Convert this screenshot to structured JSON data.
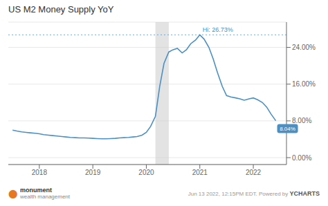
{
  "chart_data": {
    "type": "line",
    "title": "US M2 Money Supply YoY",
    "color": "#4a90c4",
    "x": [
      2017.5,
      2017.58,
      2017.67,
      2017.75,
      2017.83,
      2017.92,
      2018.0,
      2018.08,
      2018.17,
      2018.25,
      2018.33,
      2018.42,
      2018.5,
      2018.58,
      2018.67,
      2018.75,
      2018.83,
      2018.92,
      2019.0,
      2019.08,
      2019.17,
      2019.25,
      2019.33,
      2019.42,
      2019.5,
      2019.58,
      2019.67,
      2019.75,
      2019.83,
      2019.92,
      2020.0,
      2020.08,
      2020.17,
      2020.25,
      2020.33,
      2020.42,
      2020.5,
      2020.58,
      2020.67,
      2020.75,
      2020.83,
      2020.92,
      2021.0,
      2021.08,
      2021.17,
      2021.25,
      2021.33,
      2021.42,
      2021.5,
      2021.58,
      2021.67,
      2021.75,
      2021.83,
      2021.92,
      2022.0,
      2022.08,
      2022.17,
      2022.25,
      2022.33,
      2022.42
    ],
    "values": [
      6.0,
      5.8,
      5.6,
      5.5,
      5.4,
      5.3,
      5.2,
      5.0,
      4.9,
      4.8,
      4.7,
      4.6,
      4.5,
      4.4,
      4.35,
      4.3,
      4.3,
      4.25,
      4.2,
      4.15,
      4.1,
      4.1,
      4.15,
      4.2,
      4.3,
      4.35,
      4.4,
      4.5,
      4.6,
      4.9,
      5.5,
      6.8,
      9.0,
      15.5,
      20.5,
      23.0,
      23.5,
      23.8,
      22.8,
      23.5,
      24.8,
      25.6,
      26.73,
      25.8,
      24.0,
      21.5,
      18.5,
      15.5,
      13.5,
      13.2,
      13.0,
      12.8,
      12.5,
      12.8,
      13.0,
      12.6,
      12.0,
      11.0,
      9.5,
      8.04
    ],
    "xlim": [
      2017.42,
      2022.62
    ],
    "xticks": [
      2018,
      2019,
      2020,
      2021,
      2022
    ],
    "ylim": [
      -1.5,
      29.5
    ],
    "yticks": [
      {
        "value": 0,
        "label": "0.00%"
      },
      {
        "value": 8,
        "label": "8.00%"
      },
      {
        "value": 16,
        "label": "16.00%"
      },
      {
        "value": 24,
        "label": "24.00%"
      }
    ],
    "grid": true,
    "reference_y": 26.73,
    "shaded_x": [
      2020.17,
      2020.42
    ],
    "annotations": [
      {
        "text": "Hi: 26.73%",
        "x": 2021.0,
        "y": 26.73
      },
      {
        "text": "8.04%",
        "x": 2022.42,
        "y": 8.04
      },
      {
        "text": "⬤",
        "color": "#e87722"
      },
      {
        "text": "monument"
      },
      {
        "text": "wealth management"
      },
      {
        "text": "Jun 13 2022, 12:15PM EDT. Powered by "
      },
      {
        "text": "YCHARTS"
      }
    ]
  }
}
